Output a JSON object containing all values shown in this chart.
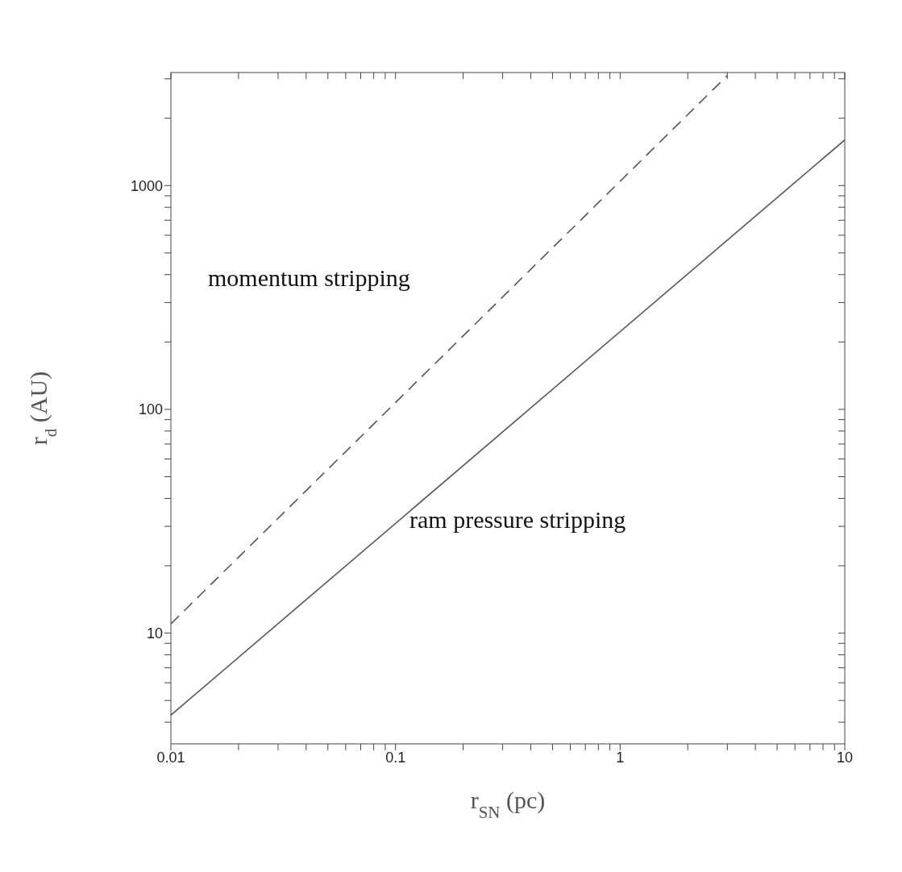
{
  "chart_data": {
    "type": "line",
    "xlabel": "r$_{SN}$ (pc)",
    "ylabel": "r$_{d}$ (AU)",
    "log": "xy",
    "marker": "none",
    "xlim": [
      0.01,
      10
    ],
    "ylim": [
      3.2,
      3200
    ],
    "xticks": [
      0.01,
      {
        "value": 0.02,
        "label": null
      },
      {
        "value": 0.03,
        "label": null
      },
      {
        "value": 0.04,
        "label": null
      },
      {
        "value": 0.05,
        "label": null
      },
      {
        "value": 0.06,
        "label": null
      },
      {
        "value": 0.07,
        "label": null
      },
      {
        "value": 0.08,
        "label": null
      },
      {
        "value": 0.09,
        "label": null
      },
      0.1,
      {
        "value": 0.2,
        "label": null
      },
      {
        "value": 0.3,
        "label": null
      },
      {
        "value": 0.4,
        "label": null
      },
      {
        "value": 0.5,
        "label": null
      },
      {
        "value": 0.6,
        "label": null
      },
      {
        "value": 0.7,
        "label": null
      },
      {
        "value": 0.8,
        "label": null
      },
      {
        "value": 0.9,
        "label": null
      },
      1,
      {
        "value": 2,
        "label": null
      },
      {
        "value": 3,
        "label": null
      },
      {
        "value": 4,
        "label": null
      },
      {
        "value": 5,
        "label": null
      },
      {
        "value": 6,
        "label": null
      },
      {
        "value": 7,
        "label": null
      },
      {
        "value": 8,
        "label": null
      },
      {
        "value": 9,
        "label": null
      },
      10
    ],
    "yticks": [
      {
        "value": 4,
        "label": null
      },
      {
        "value": 5,
        "label": null
      },
      {
        "value": 6,
        "label": null
      },
      {
        "value": 7,
        "label": null
      },
      {
        "value": 8,
        "label": null
      },
      {
        "value": 9,
        "label": null
      },
      10,
      {
        "value": 20,
        "label": null
      },
      {
        "value": 30,
        "label": null
      },
      {
        "value": 40,
        "label": null
      },
      {
        "value": 50,
        "label": null
      },
      {
        "value": 60,
        "label": null
      },
      {
        "value": 70,
        "label": null
      },
      {
        "value": 80,
        "label": null
      },
      {
        "value": 90,
        "label": null
      },
      100,
      {
        "value": 200,
        "label": null
      },
      {
        "value": 300,
        "label": null
      },
      {
        "value": 400,
        "label": null
      },
      {
        "value": 500,
        "label": null
      },
      {
        "value": 600,
        "label": null
      },
      {
        "value": 700,
        "label": null
      },
      {
        "value": 800,
        "label": null
      },
      {
        "value": 900,
        "label": null
      },
      1000,
      {
        "value": 2000,
        "label": null
      },
      {
        "value": 3000,
        "label": null
      }
    ],
    "series": [
      {
        "color": "#555555",
        "line_style": "dashed",
        "x": [
          0.01,
          3
        ],
        "values": [
          11,
          3100
        ]
      },
      {
        "color": "#555555",
        "line_style": "solid",
        "x": [
          0.01,
          10
        ],
        "values": [
          4.3,
          1600
        ]
      }
    ],
    "annotations": [
      "momentum stripping",
      "ram pressure stripping"
    ]
  }
}
